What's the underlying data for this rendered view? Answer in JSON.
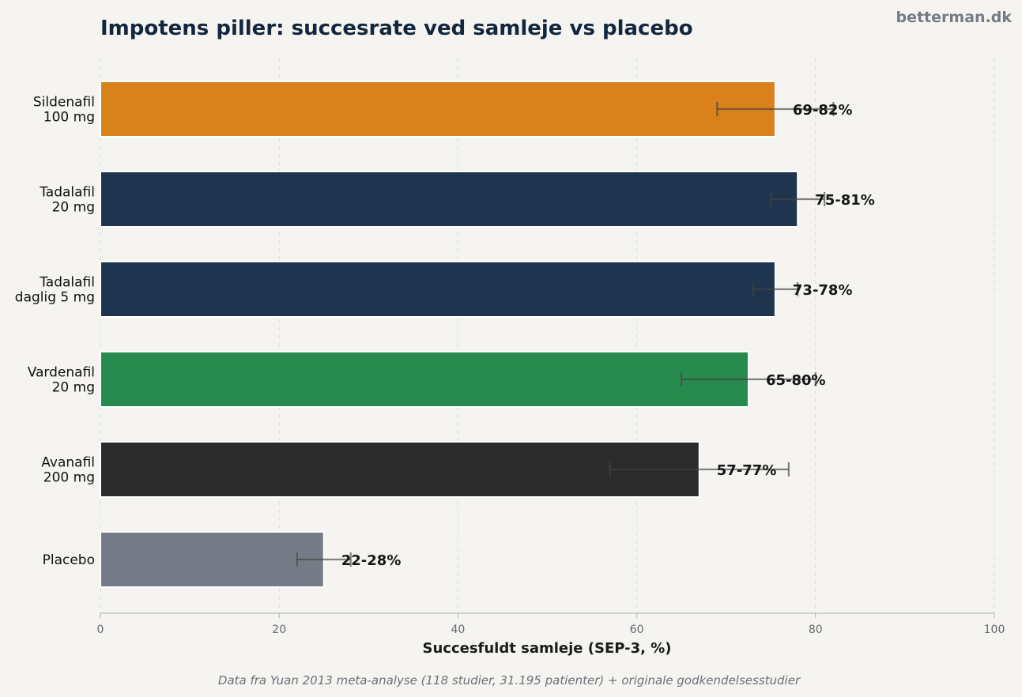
{
  "brand": "betterman.dk",
  "footnote": "Data fra Yuan 2013 meta-analyse (118 studier, 31.195 patienter) + originale godkendelsesstudier",
  "chart_data": {
    "type": "bar",
    "orientation": "horizontal",
    "title": "Impotens piller: succesrate ved samleje vs placebo",
    "xlabel": "Succesfuldt samleje (SEP-3, %)",
    "ylabel": "",
    "xlim": [
      0,
      100
    ],
    "xticks": [
      "0",
      "20",
      "40",
      "60",
      "80",
      "100"
    ],
    "grid": "vertical dashed",
    "categories": [
      [
        "Sildenafil",
        "100 mg"
      ],
      [
        "Tadalafil",
        "20 mg"
      ],
      [
        "Tadalafil",
        "daglig 5 mg"
      ],
      [
        "Vardenafil",
        "20 mg"
      ],
      [
        "Avanafil",
        "200 mg"
      ],
      [
        "Placebo"
      ]
    ],
    "values": [
      75.5,
      78,
      75.5,
      72.5,
      67,
      25
    ],
    "ranges": [
      [
        69,
        82
      ],
      [
        75,
        81
      ],
      [
        73,
        78
      ],
      [
        65,
        80
      ],
      [
        57,
        77
      ],
      [
        22,
        28
      ]
    ],
    "data_labels": [
      "69-82%",
      "75-81%",
      "73-78%",
      "65-80%",
      "57-77%",
      "22-28%"
    ],
    "colors": [
      "#d9821b",
      "#1f344e",
      "#1f344e",
      "#278a4f",
      "#2b2b2b",
      "#767c87"
    ]
  }
}
